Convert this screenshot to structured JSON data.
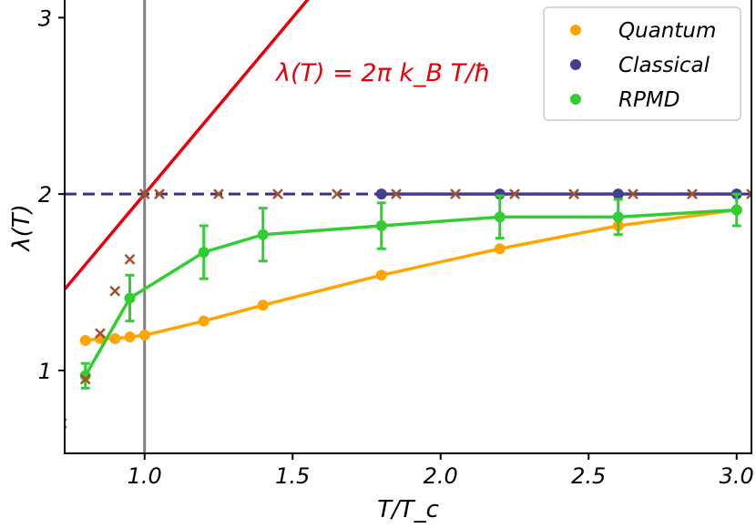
{
  "chart_data": {
    "type": "line",
    "title": "",
    "xlabel": "T/T_c",
    "ylabel": "λ(T)",
    "xlim": [
      0.73,
      3.05
    ],
    "ylim": [
      0.53,
      3.1
    ],
    "xticks": [
      1.0,
      1.5,
      2.0,
      2.5,
      3.0
    ],
    "xtick_labels": [
      "1.0",
      "1.5",
      "2.0",
      "2.5",
      "3.0"
    ],
    "yticks": [
      1,
      2,
      3
    ],
    "ytick_labels": [
      "1",
      "2",
      "3"
    ],
    "legend_position": "top-right",
    "annotation": {
      "text": "λ(T) = 2π k_B T/ħ",
      "color": "#e8000b"
    },
    "vertical_line": {
      "x": 1.0,
      "color": "#808080"
    },
    "reference_lines": [
      {
        "name": "2π k_B T/ħ",
        "type": "linear",
        "slope": 2.0,
        "intercept": 0.0,
        "color": "#e8000b"
      },
      {
        "name": "classical limit (dashed)",
        "type": "horizontal",
        "y": 2.0,
        "color": "#3b3183"
      }
    ],
    "series": [
      {
        "name": "Quantum",
        "color": "#ffa500",
        "x": [
          0.8,
          0.85,
          0.9,
          0.95,
          1.0,
          1.2,
          1.4,
          1.8,
          2.2,
          2.6,
          3.0
        ],
        "y": [
          1.17,
          1.18,
          1.18,
          1.19,
          1.2,
          1.28,
          1.37,
          1.54,
          1.69,
          1.82,
          1.91
        ]
      },
      {
        "name": "Classical",
        "color": "#453e8f",
        "x": [
          1.8,
          2.2,
          2.6,
          3.0
        ],
        "y": [
          2.0,
          2.0,
          2.0,
          2.0
        ]
      },
      {
        "name": "RPMD",
        "color": "#33cc33",
        "x": [
          0.8,
          0.95,
          1.2,
          1.4,
          1.8,
          2.2,
          2.6,
          3.0
        ],
        "y": [
          0.97,
          1.41,
          1.67,
          1.77,
          1.82,
          1.87,
          1.87,
          1.91
        ],
        "yerr": [
          0.07,
          0.13,
          0.15,
          0.15,
          0.13,
          0.12,
          0.1,
          0.09
        ]
      },
      {
        "name": "crosses",
        "color": "#a0522d",
        "marker": "x",
        "x": [
          0.72,
          0.8,
          0.85,
          0.9,
          0.95,
          1.0,
          1.05,
          1.25,
          1.45,
          1.65,
          1.85,
          2.05,
          2.25,
          2.45,
          2.65,
          2.85,
          3.05
        ],
        "y": [
          0.7,
          0.95,
          1.21,
          1.45,
          1.63,
          2.0,
          2.0,
          2.0,
          2.0,
          2.0,
          2.0,
          2.0,
          2.0,
          2.0,
          2.0,
          2.0,
          2.0
        ]
      }
    ]
  }
}
